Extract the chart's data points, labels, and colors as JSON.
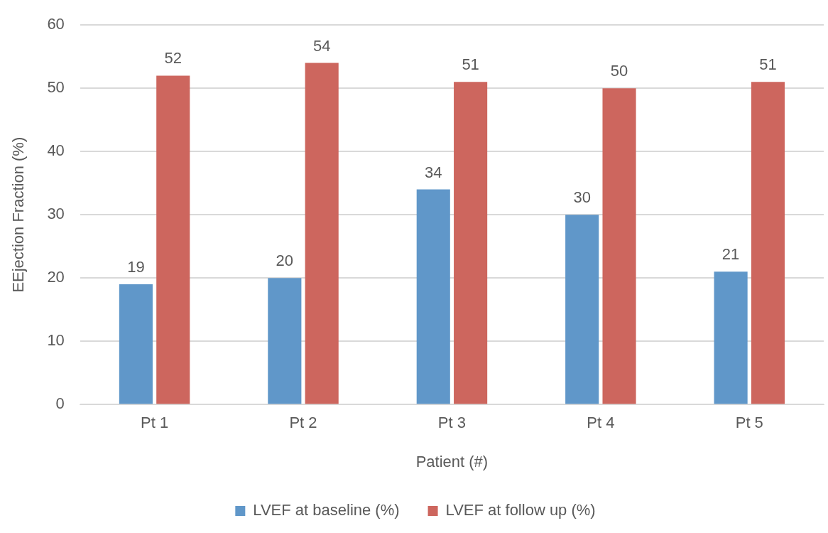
{
  "chart_data": {
    "type": "bar",
    "xlabel": "Patient (#)",
    "ylabel": "EEjection Fraction (%)",
    "categories": [
      "Pt 1",
      "Pt 2",
      "Pt 3",
      "Pt 4",
      "Pt 5"
    ],
    "series": [
      {
        "name": "LVEF at baseline (%)",
        "color": "#6097c9",
        "values": [
          19,
          20,
          34,
          30,
          21
        ]
      },
      {
        "name": "LVEF at follow up (%)",
        "color": "#cd665e",
        "values": [
          52,
          54,
          51,
          50,
          51
        ]
      }
    ],
    "ylim": [
      0,
      60
    ],
    "yticks": [
      0,
      10,
      20,
      30,
      40,
      50,
      60
    ],
    "grid": "y",
    "legend": "bottom",
    "data_labels": true
  }
}
